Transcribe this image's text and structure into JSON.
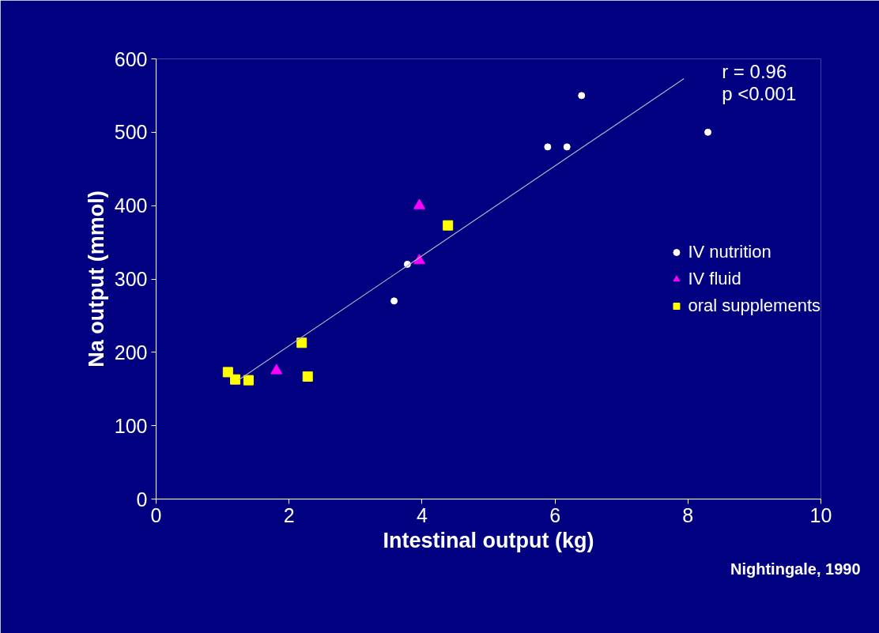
{
  "chart_data": {
    "type": "scatter",
    "xlabel": "Intestinal output (kg)",
    "ylabel": "Na output (mmol)",
    "xlim": [
      0,
      10
    ],
    "ylim": [
      0,
      600
    ],
    "xticks": [
      0,
      2,
      4,
      6,
      8,
      10
    ],
    "yticks": [
      0,
      100,
      200,
      300,
      400,
      500,
      600
    ],
    "grid": false,
    "legend": "right",
    "series": [
      {
        "name": "IV nutrition",
        "color": "#ffffff",
        "marker": "circle",
        "x": [
          6.4,
          5.89,
          6.18,
          8.3,
          3.78,
          3.58
        ],
        "values": [
          550,
          480,
          480,
          500,
          320,
          270
        ]
      },
      {
        "name": "IV fluid",
        "color": "#ff00ff",
        "marker": "triangle",
        "x": [
          3.96,
          3.96,
          1.81
        ],
        "values": [
          400,
          325,
          175
        ]
      },
      {
        "name": "oral supplements",
        "color": "#ffff00",
        "marker": "square",
        "x": [
          1.08,
          1.19,
          1.39,
          2.19,
          2.28,
          4.39
        ],
        "values": [
          173,
          163,
          162,
          213,
          167,
          373
        ]
      },
      {
        "type": "line",
        "color": "#b0b0c8",
        "x": [
          1.25,
          7.94
        ],
        "values": [
          163,
          573
        ]
      }
    ],
    "annotations": [
      "r = 0.96",
      "p <0.001",
      "Nightingale, 1990"
    ]
  }
}
